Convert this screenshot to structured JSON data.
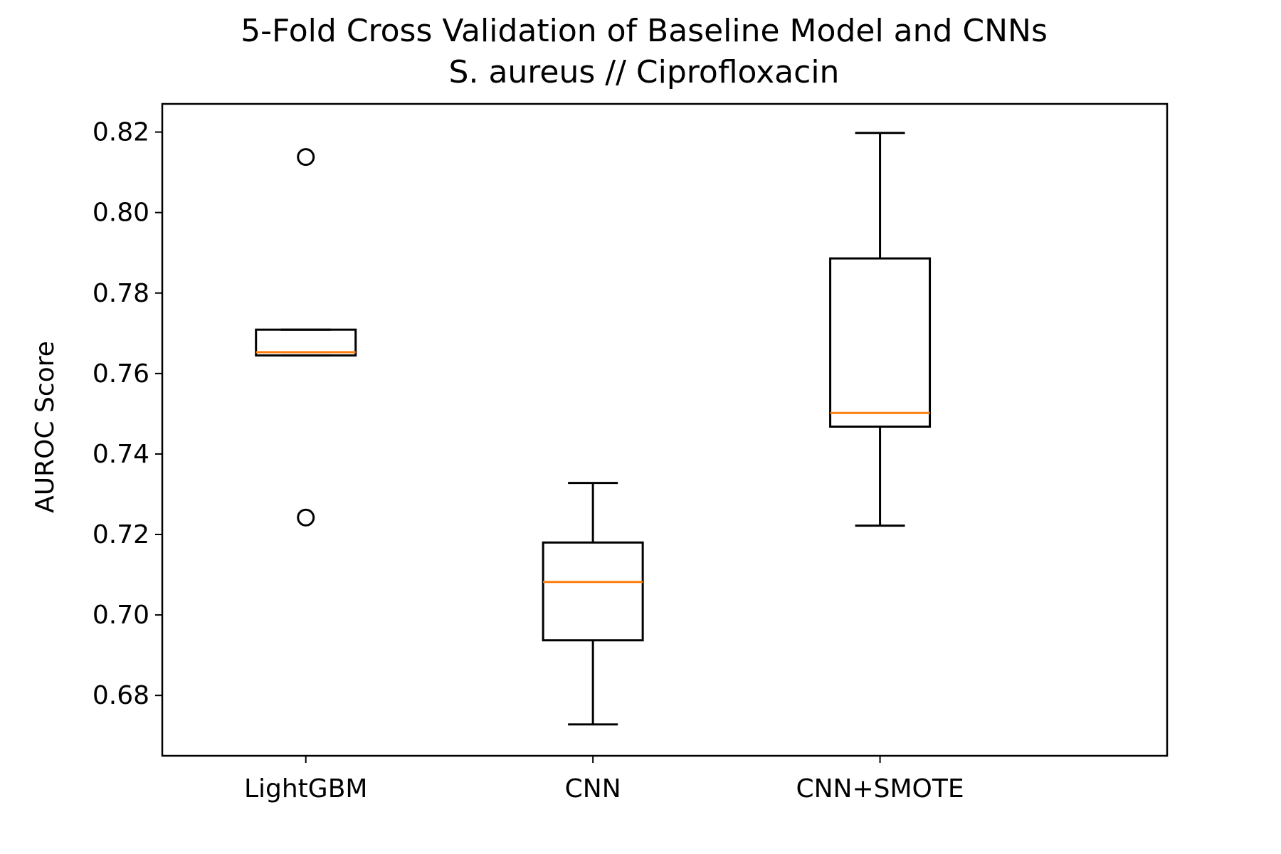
{
  "chart_data": {
    "type": "box",
    "title": "5-Fold Cross Validation of Baseline Model and CNNs",
    "subtitle": "S. aureus // Ciprofloxacin",
    "xlabel": "",
    "ylabel": "AUROC Score",
    "ylim": [
      0.665,
      0.827
    ],
    "yticks": [
      "0.68",
      "0.70",
      "0.72",
      "0.74",
      "0.76",
      "0.78",
      "0.80",
      "0.82"
    ],
    "categories": [
      "LightGBM",
      "CNN",
      "CNN+SMOTE"
    ],
    "boxes": [
      {
        "name": "LightGBM",
        "whisker_low": 0.7645,
        "q1": 0.7645,
        "median": 0.7653,
        "q3": 0.7709,
        "whisker_high": 0.7709,
        "outliers": [
          0.8138,
          0.7242
        ]
      },
      {
        "name": "CNN",
        "whisker_low": 0.6728,
        "q1": 0.6937,
        "median": 0.7082,
        "q3": 0.718,
        "whisker_high": 0.7328,
        "outliers": []
      },
      {
        "name": "CNN+SMOTE",
        "whisker_low": 0.7222,
        "q1": 0.7468,
        "median": 0.7502,
        "q3": 0.7886,
        "whisker_high": 0.8198,
        "outliers": []
      }
    ],
    "grid": false,
    "colors": {
      "box": "#000000",
      "median": "#ff7f0e"
    }
  }
}
